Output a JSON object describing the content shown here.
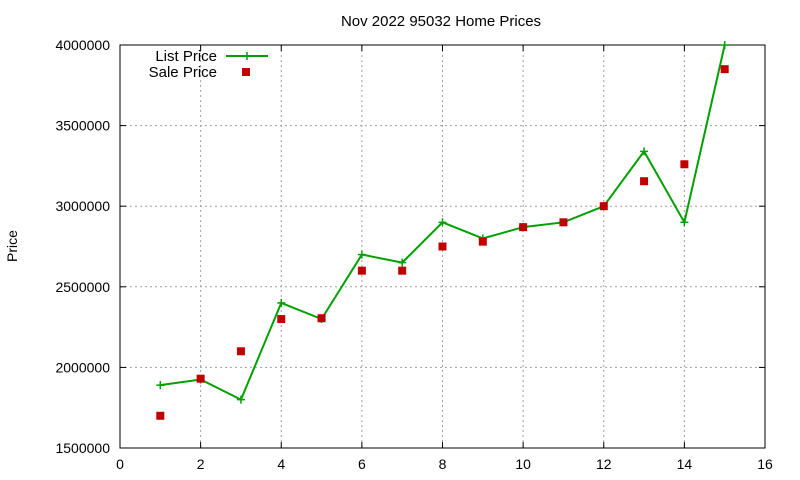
{
  "chart_data": {
    "type": "line",
    "title": "Nov 2022 95032 Home Prices",
    "xlabel": "",
    "ylabel": "Price",
    "xlim": [
      0,
      16
    ],
    "ylim": [
      1500000,
      4000000
    ],
    "xticks": [
      0,
      2,
      4,
      6,
      8,
      10,
      12,
      14,
      16
    ],
    "yticks": [
      1500000,
      2000000,
      2500000,
      3000000,
      3500000,
      4000000
    ],
    "grid": true,
    "legend_position": "top-left",
    "series": [
      {
        "name": "List Price",
        "style": "line-with-plus-markers",
        "color": "#00a000",
        "x": [
          1,
          2,
          3,
          4,
          5,
          6,
          7,
          8,
          9,
          10,
          11,
          12,
          13,
          14,
          15
        ],
        "values": [
          1890000,
          1925000,
          1800000,
          2400000,
          2300000,
          2700000,
          2650000,
          2900000,
          2800000,
          2870000,
          2900000,
          3000000,
          3340000,
          2900000,
          4000000
        ]
      },
      {
        "name": "Sale Price",
        "style": "square-markers",
        "color": "#c00000",
        "x": [
          1,
          2,
          3,
          4,
          5,
          6,
          7,
          8,
          9,
          10,
          11,
          12,
          13,
          14,
          15
        ],
        "values": [
          1700000,
          1930000,
          2100000,
          2300000,
          2305000,
          2600000,
          2600000,
          2750000,
          2780000,
          2870000,
          2900000,
          3000000,
          3155000,
          3260000,
          3850000
        ]
      }
    ]
  }
}
